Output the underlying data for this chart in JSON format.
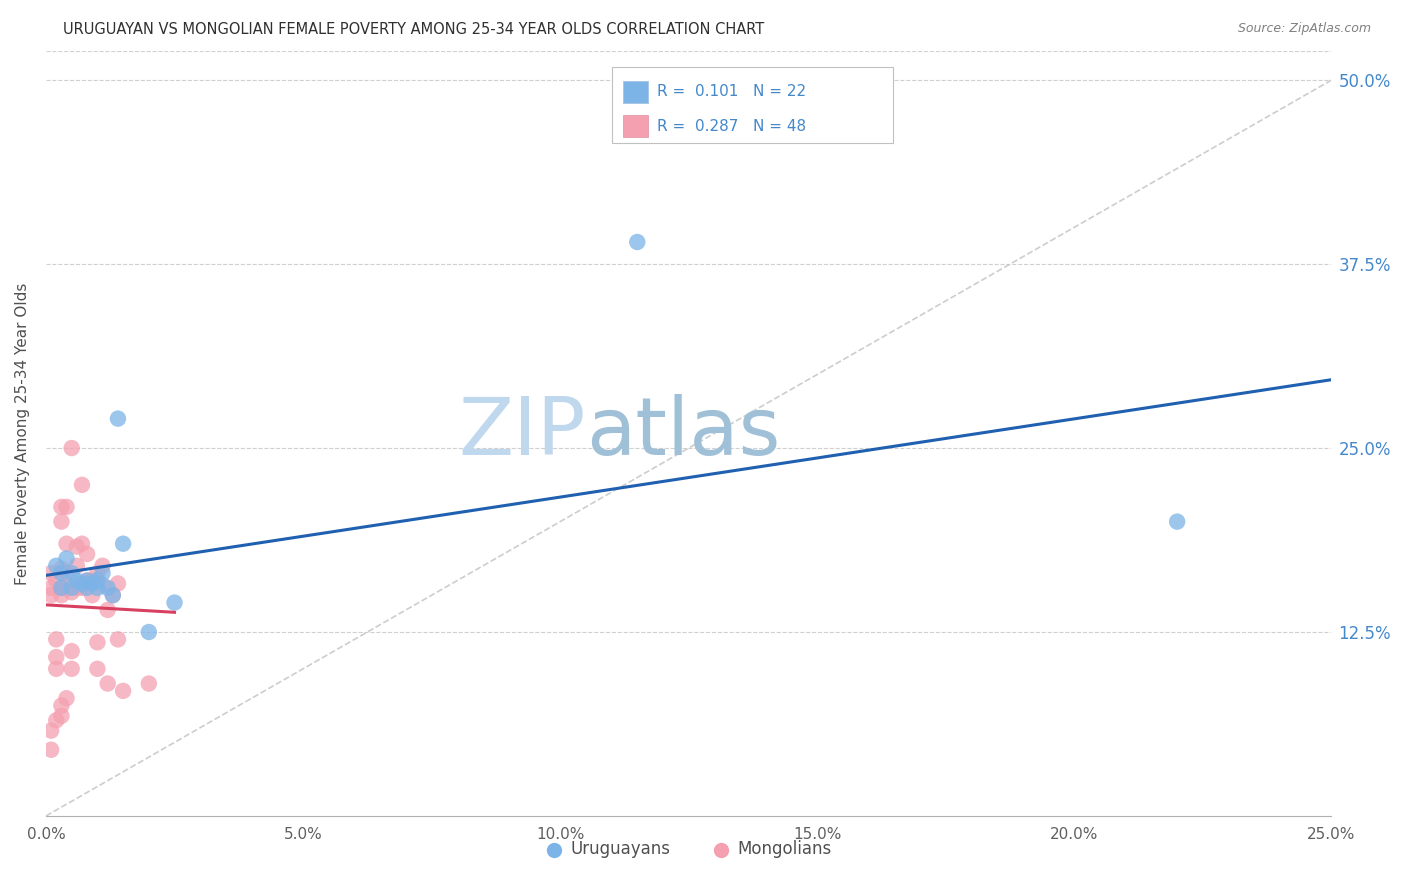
{
  "title": "URUGUAYAN VS MONGOLIAN FEMALE POVERTY AMONG 25-34 YEAR OLDS CORRELATION CHART",
  "source": "Source: ZipAtlas.com",
  "xlabel_ticks": [
    "0.0%",
    "5.0%",
    "10.0%",
    "15.0%",
    "20.0%",
    "25.0%"
  ],
  "xlabel_vals": [
    0.0,
    0.05,
    0.1,
    0.15,
    0.2,
    0.25
  ],
  "ylabel_ticks": [
    "12.5%",
    "25.0%",
    "37.5%",
    "50.0%"
  ],
  "ylabel_vals": [
    0.125,
    0.25,
    0.375,
    0.5
  ],
  "xlim": [
    0,
    0.25
  ],
  "ylim": [
    0.0,
    0.52
  ],
  "ylabel": "Female Poverty Among 25-34 Year Olds",
  "legend_R_uruguayan": "R =  0.101",
  "legend_N_uruguayan": "N = 22",
  "legend_R_mongolian": "R =  0.287",
  "legend_N_mongolian": "N = 48",
  "uruguayan_color": "#7cb4e8",
  "mongolian_color": "#f4a0b0",
  "uruguayan_line_color": "#2060b0",
  "mongolian_line_color": "#d84060",
  "diagonal_color": "#c8c8c8",
  "watermark_zip_color": "#c8dff0",
  "watermark_atlas_color": "#a8c8e0",
  "uruguayan_x": [
    0.002,
    0.003,
    0.003,
    0.004,
    0.005,
    0.005,
    0.006,
    0.007,
    0.008,
    0.008,
    0.009,
    0.01,
    0.01,
    0.011,
    0.012,
    0.013,
    0.014,
    0.015,
    0.02,
    0.025,
    0.22,
    0.115
  ],
  "uruguayan_y": [
    0.17,
    0.165,
    0.155,
    0.175,
    0.165,
    0.155,
    0.16,
    0.158,
    0.155,
    0.16,
    0.158,
    0.16,
    0.155,
    0.165,
    0.155,
    0.15,
    0.27,
    0.185,
    0.125,
    0.145,
    0.2,
    0.39
  ],
  "mongolian_x": [
    0.001,
    0.001,
    0.001,
    0.002,
    0.002,
    0.002,
    0.002,
    0.003,
    0.003,
    0.003,
    0.003,
    0.003,
    0.004,
    0.004,
    0.004,
    0.004,
    0.005,
    0.005,
    0.005,
    0.005,
    0.006,
    0.006,
    0.006,
    0.007,
    0.007,
    0.007,
    0.008,
    0.008,
    0.009,
    0.009,
    0.01,
    0.01,
    0.01,
    0.011,
    0.011,
    0.012,
    0.012,
    0.013,
    0.014,
    0.015,
    0.001,
    0.001,
    0.002,
    0.003,
    0.003,
    0.004,
    0.014,
    0.02
  ],
  "mongolian_y": [
    0.15,
    0.155,
    0.165,
    0.1,
    0.108,
    0.12,
    0.16,
    0.15,
    0.155,
    0.168,
    0.2,
    0.21,
    0.155,
    0.165,
    0.185,
    0.21,
    0.1,
    0.112,
    0.152,
    0.25,
    0.155,
    0.17,
    0.183,
    0.155,
    0.185,
    0.225,
    0.16,
    0.178,
    0.15,
    0.16,
    0.1,
    0.118,
    0.165,
    0.157,
    0.17,
    0.09,
    0.14,
    0.15,
    0.158,
    0.085,
    0.045,
    0.058,
    0.065,
    0.068,
    0.075,
    0.08,
    0.12,
    0.09
  ]
}
